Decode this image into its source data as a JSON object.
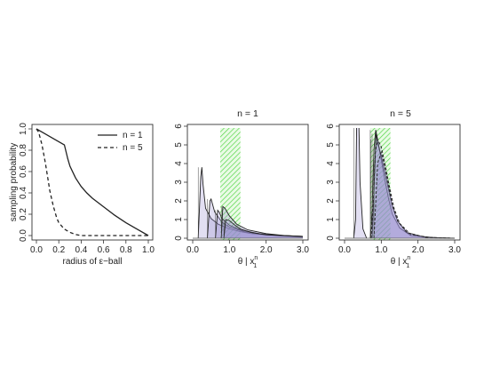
{
  "chart_data": [
    {
      "type": "line",
      "title": "",
      "xlabel": "radius of ε−ball",
      "ylabel": "sampling probability",
      "xlim": [
        0,
        1
      ],
      "ylim": [
        0,
        1
      ],
      "x_ticks": [
        "0.0",
        "0.2",
        "0.4",
        "0.6",
        "0.8",
        "1.0"
      ],
      "y_ticks": [
        "0.0",
        "0.2",
        "0.4",
        "0.6",
        "0.8",
        "1.0"
      ],
      "legend_position": "top-right",
      "series": [
        {
          "name": "n = 1",
          "line_style": "solid",
          "x": [
            0.0,
            0.05,
            0.1,
            0.15,
            0.2,
            0.25,
            0.28,
            0.3,
            0.35,
            0.4,
            0.45,
            0.5,
            0.6,
            0.7,
            0.8,
            0.9,
            1.0
          ],
          "y": [
            1.0,
            0.97,
            0.94,
            0.91,
            0.88,
            0.85,
            0.72,
            0.65,
            0.54,
            0.46,
            0.4,
            0.35,
            0.27,
            0.19,
            0.12,
            0.06,
            0.0
          ]
        },
        {
          "name": "n = 5",
          "line_style": "dashed",
          "x": [
            0.0,
            0.02,
            0.05,
            0.08,
            0.1,
            0.12,
            0.15,
            0.18,
            0.2,
            0.25,
            0.3,
            0.35,
            0.4,
            0.5,
            0.6,
            0.8,
            1.0
          ],
          "y": [
            1.0,
            0.97,
            0.85,
            0.68,
            0.55,
            0.42,
            0.28,
            0.17,
            0.12,
            0.06,
            0.03,
            0.01,
            0.0,
            0.0,
            0.0,
            0.0,
            0.0
          ]
        }
      ]
    },
    {
      "type": "area",
      "title": "n = 1",
      "xlabel": "θ | x",
      "xlabel_super": "n",
      "xlabel_sub": "1",
      "xlim": [
        0,
        3
      ],
      "ylim": [
        0,
        6
      ],
      "x_ticks": [
        "0.0",
        "1.0",
        "2.0",
        "3.0"
      ],
      "y_ticks": [
        "0",
        "1",
        "2",
        "3",
        "4",
        "5",
        "6"
      ],
      "highlight_band": [
        0.75,
        1.3
      ],
      "curves": [
        {
          "x": [
            0.15,
            0.22,
            0.25,
            0.28,
            0.35,
            0.5,
            0.7,
            1.0,
            1.3,
            1.6,
            2.0,
            2.5,
            3.0
          ],
          "y": [
            0.0,
            3.3,
            3.8,
            2.9,
            1.6,
            1.05,
            0.75,
            0.5,
            0.35,
            0.25,
            0.18,
            0.12,
            0.08
          ]
        },
        {
          "x": [
            0.4,
            0.47,
            0.5,
            0.6,
            0.8,
            1.0,
            1.4,
            2.0,
            2.5,
            3.0
          ],
          "y": [
            0.0,
            2.0,
            2.1,
            1.4,
            0.85,
            0.6,
            0.35,
            0.2,
            0.14,
            0.1
          ]
        },
        {
          "x": [
            0.62,
            0.68,
            0.72,
            0.8,
            1.0,
            1.3,
            1.8,
            2.4,
            3.0
          ],
          "y": [
            0.0,
            1.5,
            1.4,
            1.05,
            0.7,
            0.45,
            0.25,
            0.15,
            0.1
          ]
        },
        {
          "x": [
            0.78,
            0.82,
            0.88,
            1.0,
            1.2,
            1.5,
            2.0,
            2.5,
            3.0
          ],
          "y": [
            0.0,
            1.7,
            1.6,
            1.2,
            0.75,
            0.45,
            0.25,
            0.15,
            0.1
          ]
        },
        {
          "x": [
            0.85,
            0.9,
            1.0,
            1.15,
            1.3,
            1.6,
            2.0,
            3.0
          ],
          "y": [
            0.0,
            1.0,
            0.95,
            0.7,
            0.5,
            0.3,
            0.18,
            0.08
          ]
        }
      ]
    },
    {
      "type": "area",
      "title": "n = 5",
      "xlabel": "θ | x",
      "xlabel_super": "n",
      "xlabel_sub": "1",
      "xlim": [
        0,
        3
      ],
      "ylim": [
        0,
        6
      ],
      "x_ticks": [
        "0.0",
        "1.0",
        "2.0",
        "3.0"
      ],
      "y_ticks": [
        "0",
        "1",
        "2",
        "3",
        "4",
        "5",
        "6"
      ],
      "highlight_band": [
        0.7,
        1.25
      ],
      "curves": [
        {
          "x": [
            0.25,
            0.3,
            0.33,
            0.36,
            0.39,
            0.42,
            0.5,
            0.6
          ],
          "y": [
            0.0,
            1.0,
            6.2,
            6.2,
            6.2,
            3.0,
            0.5,
            0.0
          ]
        },
        {
          "x": [
            0.7,
            0.75,
            0.8,
            0.85,
            0.9,
            1.0,
            1.1,
            1.2,
            1.3,
            1.5,
            1.8,
            2.5,
            3.0
          ],
          "y": [
            0.0,
            1.5,
            4.8,
            5.8,
            5.3,
            4.2,
            3.1,
            2.1,
            1.3,
            0.55,
            0.15,
            0.02,
            0.0
          ]
        },
        {
          "x": [
            0.75,
            0.8,
            0.86,
            0.92,
            1.0,
            1.1,
            1.2,
            1.3,
            1.45,
            1.7,
            2.2,
            3.0
          ],
          "y": [
            0.0,
            2.5,
            5.6,
            5.0,
            4.4,
            3.5,
            2.6,
            1.7,
            0.9,
            0.3,
            0.05,
            0.0
          ]
        },
        {
          "x": [
            0.72,
            0.78,
            0.84,
            0.9,
            1.0,
            1.1,
            1.22,
            1.35,
            1.5,
            1.8,
            2.4,
            3.0
          ],
          "y": [
            0.0,
            1.8,
            4.6,
            5.3,
            4.9,
            4.0,
            2.8,
            1.6,
            0.8,
            0.2,
            0.02,
            0.0
          ]
        },
        {
          "x": [
            0.8,
            0.84,
            0.9,
            1.0,
            1.1,
            1.2,
            1.3,
            1.45,
            1.7,
            2.2,
            3.0
          ],
          "y": [
            0.0,
            1.5,
            4.0,
            4.6,
            3.8,
            2.8,
            1.8,
            0.9,
            0.3,
            0.05,
            0.0
          ]
        }
      ]
    }
  ]
}
